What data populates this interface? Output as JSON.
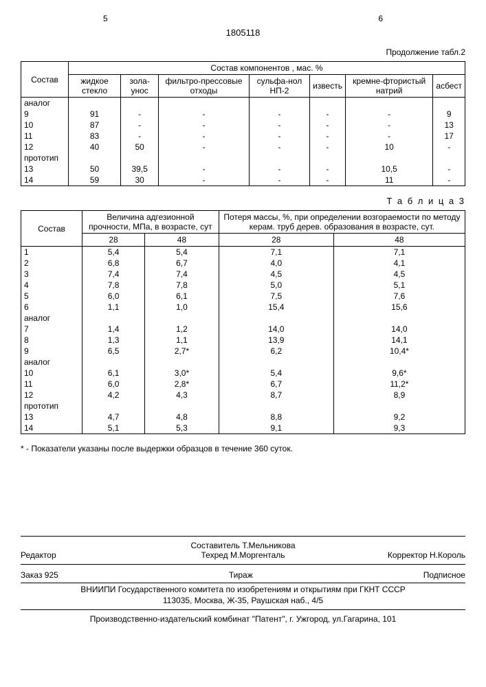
{
  "page_left": "5",
  "page_right": "6",
  "doc_number": "1805118",
  "table2_continuation": "Продолжение табл.2",
  "table2": {
    "header_col1": "Состав",
    "header_group": "Состав компонентов , мас. %",
    "cols": [
      "жидкое стекло",
      "зола-унос",
      "фильтро-прессовые отходы",
      "сульфа-нол НП-2",
      "известь",
      "кремне-фтористый натрий",
      "асбест"
    ],
    "rows": [
      {
        "label": "аналог",
        "cells": [
          "",
          "",
          "",
          "",
          "",
          "",
          ""
        ]
      },
      {
        "label": "9",
        "cells": [
          "91",
          "-",
          "-",
          "-",
          "-",
          "-",
          "9"
        ]
      },
      {
        "label": "10",
        "cells": [
          "87",
          "-",
          "-",
          "-",
          "-",
          "-",
          "13"
        ]
      },
      {
        "label": "11",
        "cells": [
          "83",
          "-",
          "-",
          "-",
          "-",
          "-",
          "17"
        ]
      },
      {
        "label": "12",
        "cells": [
          "40",
          "50",
          "-",
          "-",
          "-",
          "10",
          "-"
        ]
      },
      {
        "label": "прототип",
        "cells": [
          "",
          "",
          "",
          "",
          "",
          "",
          ""
        ]
      },
      {
        "label": "13",
        "cells": [
          "50",
          "39,5",
          "-",
          "-",
          "-",
          "10,5",
          "-"
        ]
      },
      {
        "label": "14",
        "cells": [
          "59",
          "30",
          "-",
          "-",
          "-",
          "11",
          "-"
        ]
      }
    ]
  },
  "table3_title": "Т а б л и ц а  3",
  "table3": {
    "header_col1": "Состав",
    "header_group1": "Величина адгезионной прочности, МПа, в возрасте, сут",
    "header_group2": "Потеря массы, %, при определении возгораемости по методу керам. труб дерев. образования в возрасте, сут.",
    "sub": [
      "28",
      "48",
      "28",
      "48"
    ],
    "rows": [
      {
        "label": "1",
        "cells": [
          "5,4",
          "5,4",
          "7,1",
          "7,1"
        ]
      },
      {
        "label": "2",
        "cells": [
          "6,8",
          "6,7",
          "4,0",
          "4,1"
        ]
      },
      {
        "label": "3",
        "cells": [
          "7,4",
          "7,4",
          "4,5",
          "4,5"
        ]
      },
      {
        "label": "4",
        "cells": [
          "7,8",
          "7,8",
          "5,0",
          "5,1"
        ]
      },
      {
        "label": "5",
        "cells": [
          "6,0",
          "6,1",
          "7,5",
          "7,6"
        ]
      },
      {
        "label": "6",
        "cells": [
          "1,1",
          "1,0",
          "15,4",
          "15,6"
        ]
      },
      {
        "label": "аналог",
        "cells": [
          "",
          "",
          "",
          ""
        ]
      },
      {
        "label": "7",
        "cells": [
          "1,4",
          "1,2",
          "14,0",
          "14,0"
        ]
      },
      {
        "label": "8",
        "cells": [
          "1,3",
          "1,1",
          "13,9",
          "14,1"
        ]
      },
      {
        "label": "9",
        "cells": [
          "6,5",
          "2,7*",
          "6,2",
          "10,4*"
        ]
      },
      {
        "label": "аналог",
        "cells": [
          "",
          "",
          "",
          ""
        ]
      },
      {
        "label": "10",
        "cells": [
          "6,1",
          "3,0*",
          "5,4",
          "9,6*"
        ]
      },
      {
        "label": "11",
        "cells": [
          "6,0",
          "2,8*",
          "6,7",
          "11,2*"
        ]
      },
      {
        "label": "12",
        "cells": [
          "4,2",
          "4,3",
          "8,7",
          "8,9"
        ]
      },
      {
        "label": "прототип",
        "cells": [
          "",
          "",
          "",
          ""
        ]
      },
      {
        "label": "13",
        "cells": [
          "4,7",
          "4,8",
          "8,8",
          "9,2"
        ]
      },
      {
        "label": "14",
        "cells": [
          "5,1",
          "5,3",
          "9,1",
          "9,3"
        ]
      }
    ]
  },
  "footnote": "* - Показатели указаны после выдержки образцов в течение 360 суток.",
  "credits": {
    "editor_label": "Редактор",
    "compiler": "Составитель Т.Мельникова",
    "tech": "Техред М.Моргенталь",
    "corrector": "Корректор Н.Король"
  },
  "order": {
    "left": "Заказ 925",
    "mid": "Тираж",
    "right": "Подписное"
  },
  "org_line1": "ВНИИПИ Государственного комитета по изобретениям и открытиям при ГКНТ СССР",
  "org_line2": "113035, Москва, Ж-35, Раушская наб., 4/5",
  "org_line3": "Производственно-издательский комбинат \"Патент\", г. Ужгород, ул.Гагарина, 101"
}
